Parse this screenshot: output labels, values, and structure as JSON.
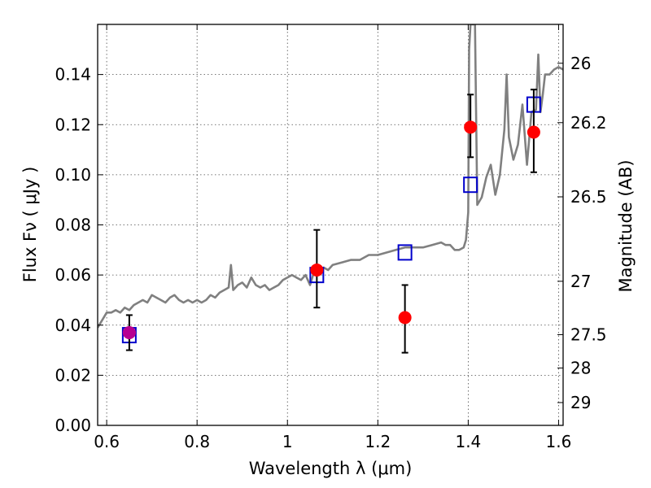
{
  "chart_data": {
    "type": "scatter",
    "title": "",
    "xlabel": "Wavelength  λ (μm)",
    "ylabel": "Flux  Fν  ( μJy )",
    "ylabel_right": "Magnitude (AB)",
    "xlim": [
      0.58,
      1.61
    ],
    "ylim": [
      0.0,
      0.16
    ],
    "grid": true,
    "x_ticks": [
      0.6,
      0.8,
      1.0,
      1.2,
      1.4,
      1.6
    ],
    "x_tick_labels": [
      "0.6",
      "0.8",
      "1",
      "1.2",
      "1.4",
      "1.6"
    ],
    "y_ticks": [
      0.0,
      0.02,
      0.04,
      0.06,
      0.08,
      0.1,
      0.12,
      0.14
    ],
    "y_tick_labels": [
      "0.00",
      "0.02",
      "0.04",
      "0.06",
      "0.08",
      "0.10",
      "0.12",
      "0.14"
    ],
    "right_ticks": [
      {
        "flux": 0.1445,
        "label": "26"
      },
      {
        "flux": 0.1208,
        "label": "26.2"
      },
      {
        "flux": 0.0912,
        "label": "26.5"
      },
      {
        "flux": 0.0575,
        "label": "27"
      },
      {
        "flux": 0.0362,
        "label": "27.5"
      },
      {
        "flux": 0.0229,
        "label": "28"
      },
      {
        "flux": 0.0091,
        "label": "29"
      }
    ],
    "series": [
      {
        "kind": "line",
        "color": "#808080",
        "points": [
          [
            0.58,
            0.039
          ],
          [
            0.59,
            0.042
          ],
          [
            0.6,
            0.045
          ],
          [
            0.61,
            0.045
          ],
          [
            0.62,
            0.046
          ],
          [
            0.63,
            0.045
          ],
          [
            0.64,
            0.047
          ],
          [
            0.65,
            0.046
          ],
          [
            0.66,
            0.048
          ],
          [
            0.67,
            0.049
          ],
          [
            0.68,
            0.05
          ],
          [
            0.69,
            0.049
          ],
          [
            0.7,
            0.052
          ],
          [
            0.71,
            0.051
          ],
          [
            0.72,
            0.05
          ],
          [
            0.73,
            0.049
          ],
          [
            0.74,
            0.051
          ],
          [
            0.75,
            0.052
          ],
          [
            0.76,
            0.05
          ],
          [
            0.77,
            0.049
          ],
          [
            0.78,
            0.05
          ],
          [
            0.79,
            0.049
          ],
          [
            0.8,
            0.05
          ],
          [
            0.81,
            0.049
          ],
          [
            0.82,
            0.05
          ],
          [
            0.83,
            0.052
          ],
          [
            0.84,
            0.051
          ],
          [
            0.85,
            0.053
          ],
          [
            0.86,
            0.054
          ],
          [
            0.87,
            0.055
          ],
          [
            0.875,
            0.064
          ],
          [
            0.88,
            0.054
          ],
          [
            0.89,
            0.056
          ],
          [
            0.9,
            0.057
          ],
          [
            0.91,
            0.055
          ],
          [
            0.92,
            0.059
          ],
          [
            0.93,
            0.056
          ],
          [
            0.94,
            0.055
          ],
          [
            0.95,
            0.056
          ],
          [
            0.96,
            0.054
          ],
          [
            0.97,
            0.055
          ],
          [
            0.98,
            0.056
          ],
          [
            0.99,
            0.058
          ],
          [
            1.0,
            0.059
          ],
          [
            1.01,
            0.06
          ],
          [
            1.02,
            0.059
          ],
          [
            1.03,
            0.058
          ],
          [
            1.04,
            0.06
          ],
          [
            1.05,
            0.056
          ],
          [
            1.06,
            0.062
          ],
          [
            1.07,
            0.061
          ],
          [
            1.08,
            0.063
          ],
          [
            1.09,
            0.062
          ],
          [
            1.1,
            0.064
          ],
          [
            1.12,
            0.065
          ],
          [
            1.14,
            0.066
          ],
          [
            1.16,
            0.066
          ],
          [
            1.18,
            0.068
          ],
          [
            1.2,
            0.068
          ],
          [
            1.22,
            0.069
          ],
          [
            1.24,
            0.07
          ],
          [
            1.26,
            0.071
          ],
          [
            1.28,
            0.071
          ],
          [
            1.3,
            0.071
          ],
          [
            1.32,
            0.072
          ],
          [
            1.34,
            0.073
          ],
          [
            1.35,
            0.072
          ],
          [
            1.36,
            0.072
          ],
          [
            1.37,
            0.07
          ],
          [
            1.38,
            0.07
          ],
          [
            1.39,
            0.071
          ],
          [
            1.395,
            0.074
          ],
          [
            1.4,
            0.085
          ],
          [
            1.402,
            0.15
          ],
          [
            1.405,
            0.16
          ],
          [
            1.41,
            0.16
          ],
          [
            1.415,
            0.16
          ],
          [
            1.42,
            0.088
          ],
          [
            1.43,
            0.091
          ],
          [
            1.44,
            0.099
          ],
          [
            1.45,
            0.104
          ],
          [
            1.46,
            0.092
          ],
          [
            1.47,
            0.1
          ],
          [
            1.48,
            0.118
          ],
          [
            1.485,
            0.14
          ],
          [
            1.49,
            0.115
          ],
          [
            1.5,
            0.106
          ],
          [
            1.51,
            0.112
          ],
          [
            1.52,
            0.128
          ],
          [
            1.53,
            0.104
          ],
          [
            1.54,
            0.125
          ],
          [
            1.55,
            0.126
          ],
          [
            1.555,
            0.148
          ],
          [
            1.56,
            0.125
          ],
          [
            1.565,
            0.132
          ],
          [
            1.57,
            0.14
          ],
          [
            1.58,
            0.14
          ],
          [
            1.59,
            0.142
          ],
          [
            1.6,
            0.143
          ],
          [
            1.61,
            0.142
          ]
        ]
      },
      {
        "kind": "squares",
        "color": "#0000cc",
        "points": [
          [
            0.65,
            0.036
          ],
          [
            1.065,
            0.06
          ],
          [
            1.26,
            0.069
          ],
          [
            1.405,
            0.096
          ],
          [
            1.545,
            0.128
          ]
        ]
      },
      {
        "kind": "circles",
        "color": "#ff0000",
        "points": [
          {
            "x": 0.65,
            "y": 0.037,
            "lo": 0.03,
            "hi": 0.044
          },
          {
            "x": 1.065,
            "y": 0.062,
            "lo": 0.047,
            "hi": 0.078
          },
          {
            "x": 1.26,
            "y": 0.043,
            "lo": 0.029,
            "hi": 0.056
          },
          {
            "x": 1.405,
            "y": 0.119,
            "lo": 0.107,
            "hi": 0.132
          },
          {
            "x": 1.545,
            "y": 0.117,
            "lo": 0.101,
            "hi": 0.134
          }
        ]
      },
      {
        "kind": "circles-overlap",
        "color": "#aa00aa",
        "points": [
          [
            0.65,
            0.037
          ]
        ]
      }
    ]
  }
}
